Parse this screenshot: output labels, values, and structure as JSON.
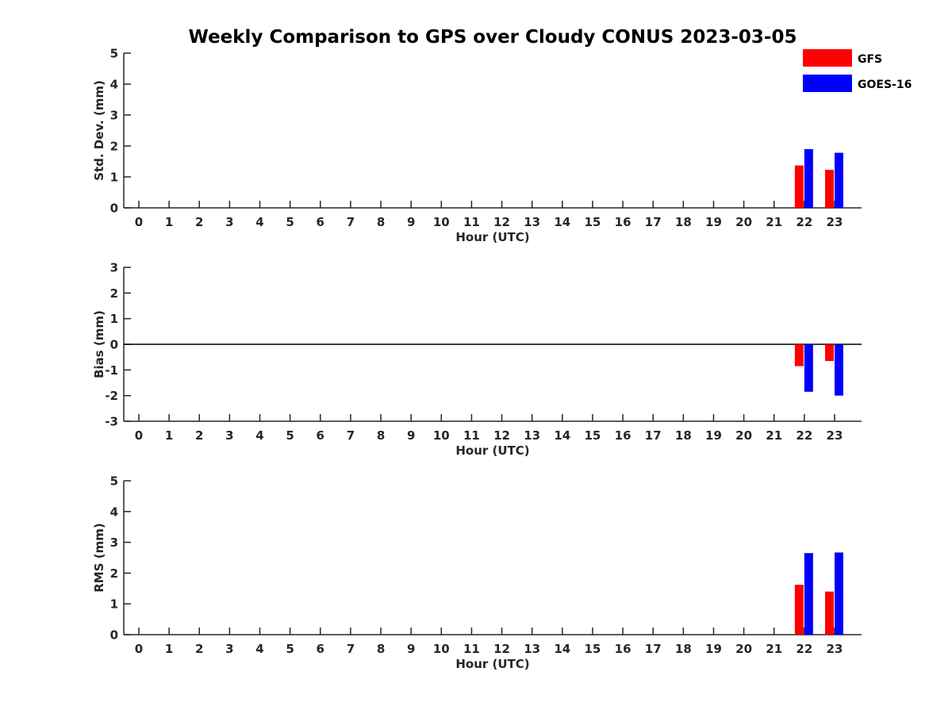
{
  "figure_title": "Weekly Comparison to GPS over Cloudy CONUS 2023-03-05",
  "colors": {
    "GFS": "#ff0000",
    "GOES-16": "#0000ff"
  },
  "legend": {
    "placement": "top-right",
    "entries": [
      "GFS",
      "GOES-16"
    ]
  },
  "chart_data": [
    {
      "type": "bar",
      "title": "Weekly Comparison to GPS over Cloudy CONUS 2023-03-05",
      "xlabel": "Hour (UTC)",
      "ylabel": "Std. Dev. (mm)",
      "categories": [
        "0",
        "1",
        "2",
        "3",
        "4",
        "5",
        "6",
        "7",
        "8",
        "9",
        "10",
        "11",
        "12",
        "13",
        "14",
        "15",
        "16",
        "17",
        "18",
        "19",
        "20",
        "21",
        "22",
        "23"
      ],
      "ylim": [
        0,
        5
      ],
      "yticks": [
        "0",
        "1",
        "2",
        "3",
        "4",
        "5"
      ],
      "zero_line": false,
      "series": [
        {
          "name": "GFS",
          "values": [
            null,
            null,
            null,
            null,
            null,
            null,
            null,
            null,
            null,
            null,
            null,
            null,
            null,
            null,
            null,
            null,
            null,
            null,
            null,
            null,
            null,
            null,
            1.37,
            1.23
          ]
        },
        {
          "name": "GOES-16",
          "values": [
            null,
            null,
            null,
            null,
            null,
            null,
            null,
            null,
            null,
            null,
            null,
            null,
            null,
            null,
            null,
            null,
            null,
            null,
            null,
            null,
            null,
            null,
            1.9,
            1.78
          ]
        }
      ]
    },
    {
      "type": "bar",
      "xlabel": "Hour (UTC)",
      "ylabel": "Bias (mm)",
      "categories": [
        "0",
        "1",
        "2",
        "3",
        "4",
        "5",
        "6",
        "7",
        "8",
        "9",
        "10",
        "11",
        "12",
        "13",
        "14",
        "15",
        "16",
        "17",
        "18",
        "19",
        "20",
        "21",
        "22",
        "23"
      ],
      "ylim": [
        -3,
        3
      ],
      "yticks": [
        "-3",
        "-2",
        "-1",
        "0",
        "1",
        "2",
        "3"
      ],
      "zero_line": true,
      "series": [
        {
          "name": "GFS",
          "values": [
            null,
            null,
            null,
            null,
            null,
            null,
            null,
            null,
            null,
            null,
            null,
            null,
            null,
            null,
            null,
            null,
            null,
            null,
            null,
            null,
            null,
            null,
            -0.85,
            -0.65
          ]
        },
        {
          "name": "GOES-16",
          "values": [
            null,
            null,
            null,
            null,
            null,
            null,
            null,
            null,
            null,
            null,
            null,
            null,
            null,
            null,
            null,
            null,
            null,
            null,
            null,
            null,
            null,
            null,
            -1.85,
            -2.0
          ]
        }
      ]
    },
    {
      "type": "bar",
      "xlabel": "Hour (UTC)",
      "ylabel": "RMS (mm)",
      "categories": [
        "0",
        "1",
        "2",
        "3",
        "4",
        "5",
        "6",
        "7",
        "8",
        "9",
        "10",
        "11",
        "12",
        "13",
        "14",
        "15",
        "16",
        "17",
        "18",
        "19",
        "20",
        "21",
        "22",
        "23"
      ],
      "ylim": [
        0,
        5
      ],
      "yticks": [
        "0",
        "1",
        "2",
        "3",
        "4",
        "5"
      ],
      "zero_line": false,
      "series": [
        {
          "name": "GFS",
          "values": [
            null,
            null,
            null,
            null,
            null,
            null,
            null,
            null,
            null,
            null,
            null,
            null,
            null,
            null,
            null,
            null,
            null,
            null,
            null,
            null,
            null,
            null,
            1.62,
            1.4
          ]
        },
        {
          "name": "GOES-16",
          "values": [
            null,
            null,
            null,
            null,
            null,
            null,
            null,
            null,
            null,
            null,
            null,
            null,
            null,
            null,
            null,
            null,
            null,
            null,
            null,
            null,
            null,
            null,
            2.65,
            2.67
          ]
        }
      ]
    }
  ]
}
